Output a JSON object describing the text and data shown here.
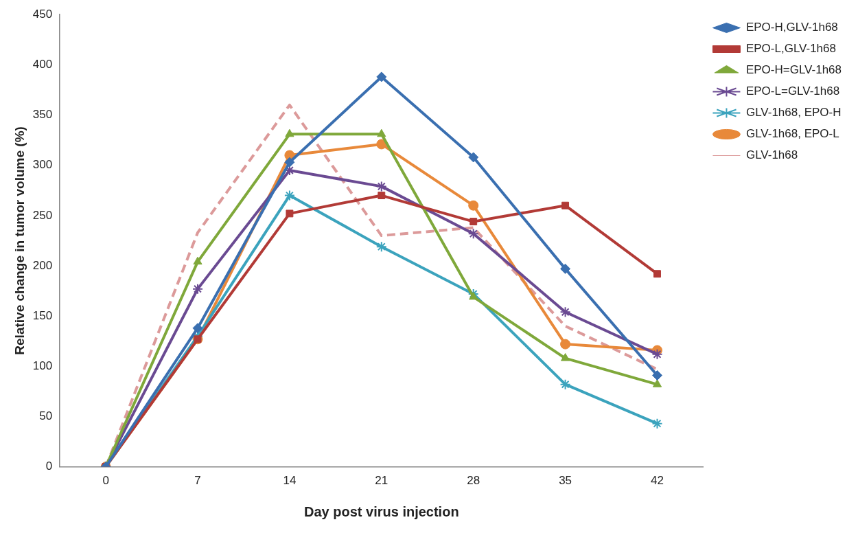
{
  "chart_data": {
    "type": "line",
    "xlabel": "Day post virus injection",
    "ylabel": "Relative change in tumor volume (%)",
    "categories": [
      "0",
      "7",
      "14",
      "21",
      "28",
      "35",
      "42"
    ],
    "ylim": [
      0,
      450
    ],
    "yticks": [
      0,
      50,
      100,
      150,
      200,
      250,
      300,
      350,
      400,
      450
    ],
    "grid": false,
    "legend": "top right",
    "series": [
      {
        "name": "EPO-H,GLV-1h68",
        "color": "#3a6fb0",
        "marker": "diamond",
        "line_style": "solid",
        "values": [
          0,
          138,
          303,
          388,
          308,
          197,
          91
        ]
      },
      {
        "name": "EPO-L,GLV-1h68",
        "color": "#b23a36",
        "marker": "square",
        "line_style": "solid",
        "values": [
          0,
          127,
          252,
          270,
          244,
          260,
          192
        ]
      },
      {
        "name": "EPO-H=GLV-1h68",
        "color": "#7fa83a",
        "marker": "triangle",
        "line_style": "solid",
        "values": [
          0,
          204,
          331,
          331,
          169,
          108,
          82
        ]
      },
      {
        "name": "EPO-L=GLV-1h68",
        "color": "#6a4a92",
        "marker": "cross",
        "line_style": "solid",
        "values": [
          0,
          177,
          295,
          279,
          232,
          154,
          112
        ]
      },
      {
        "name": "GLV-1h68, EPO-H",
        "color": "#3ba3bd",
        "marker": "cross",
        "line_style": "solid",
        "values": [
          0,
          130,
          270,
          219,
          172,
          82,
          43
        ]
      },
      {
        "name": "GLV-1h68, EPO-L",
        "color": "#e8893a",
        "marker": "circle",
        "line_style": "solid",
        "values": [
          0,
          127,
          310,
          321,
          260,
          122,
          116
        ]
      },
      {
        "name": "GLV-1h68",
        "color": "#dc9a9a",
        "marker": "none",
        "line_style": "dashed",
        "values": [
          0,
          233,
          360,
          230,
          238,
          140,
          97
        ]
      }
    ]
  }
}
